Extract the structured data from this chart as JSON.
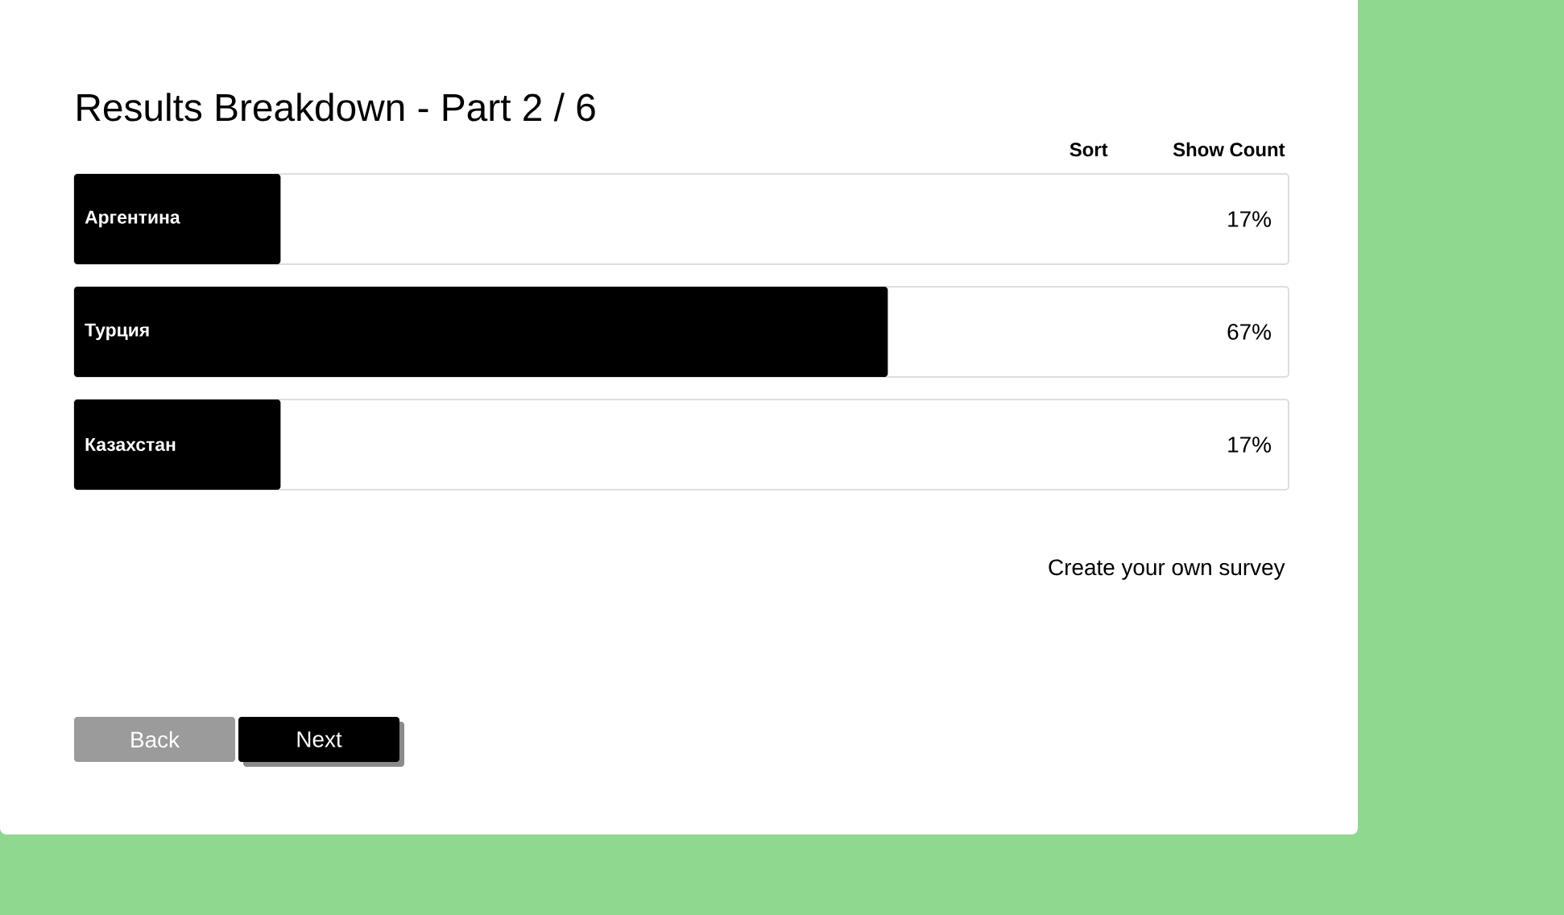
{
  "chart_data": {
    "type": "bar",
    "orientation": "horizontal",
    "title": "Results Breakdown - Part 2 / 6",
    "categories": [
      "Аргентина",
      "Турция",
      "Казахстан"
    ],
    "values": [
      17,
      67,
      17
    ],
    "value_labels": [
      "17%",
      "67%",
      "17%"
    ],
    "color": "#000000",
    "xlim": [
      0,
      100
    ],
    "tick_labels": "y",
    "annotations": [
      "Sort",
      "Show Count",
      "Create your own survey",
      "Back",
      "Next"
    ]
  }
}
